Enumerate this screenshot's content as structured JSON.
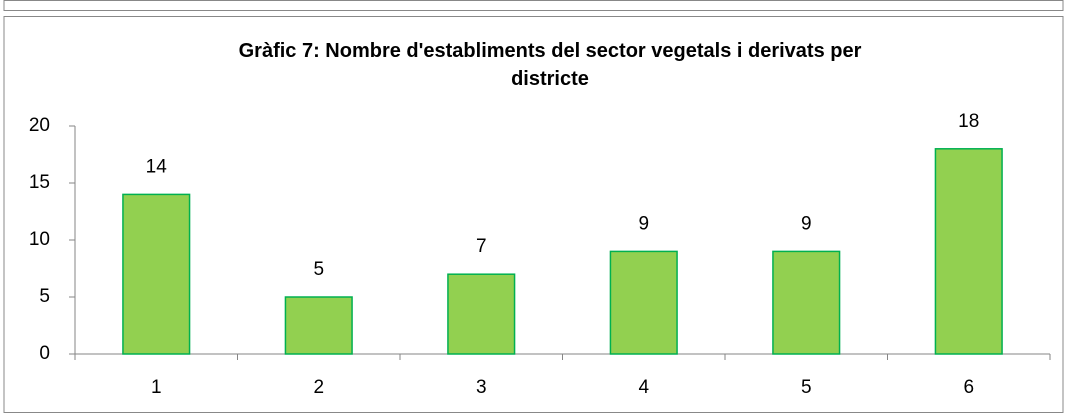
{
  "chart_data": {
    "type": "bar",
    "title": "Gràfic 7: Nombre d'establiments del sector vegetals i derivats per districte",
    "categories": [
      "1",
      "2",
      "3",
      "4",
      "5",
      "6"
    ],
    "values": [
      14,
      5,
      7,
      9,
      9,
      18
    ],
    "color": "#92d050",
    "edge_color": "#00b050",
    "ylim": [
      0,
      20
    ],
    "yticks": [
      0,
      5,
      10,
      15,
      20
    ],
    "grid": false
  }
}
